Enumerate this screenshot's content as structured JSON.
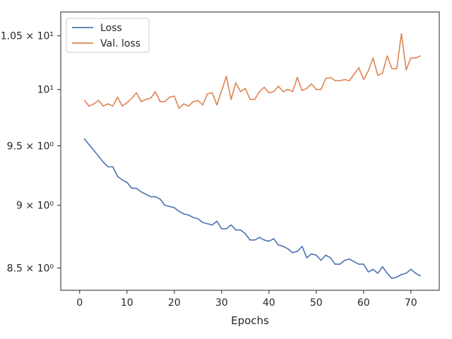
{
  "chart_data": {
    "type": "line",
    "title": "",
    "xlabel": "Epochs",
    "ylabel": "",
    "y_scale": "log",
    "xlim": [
      -4,
      76
    ],
    "ylim": [
      8.33,
      10.73
    ],
    "grid": false,
    "legend_position": "top-left",
    "x_ticks": [
      {
        "value": 0,
        "label": "0"
      },
      {
        "value": 10,
        "label": "10"
      },
      {
        "value": 20,
        "label": "20"
      },
      {
        "value": 30,
        "label": "30"
      },
      {
        "value": 40,
        "label": "40"
      },
      {
        "value": 50,
        "label": "50"
      },
      {
        "value": 60,
        "label": "60"
      },
      {
        "value": 70,
        "label": "70"
      }
    ],
    "y_ticks": [
      {
        "value": 8.5,
        "label": "8.5 × 10⁰"
      },
      {
        "value": 9.0,
        "label": "9 × 10⁰"
      },
      {
        "value": 9.5,
        "label": "9.5 × 10⁰"
      },
      {
        "value": 10.0,
        "label": "10¹"
      },
      {
        "value": 10.5,
        "label": "1.05 × 10¹"
      }
    ],
    "x": [
      1,
      2,
      3,
      4,
      5,
      6,
      7,
      8,
      9,
      10,
      11,
      12,
      13,
      14,
      15,
      16,
      17,
      18,
      19,
      20,
      21,
      22,
      23,
      24,
      25,
      26,
      27,
      28,
      29,
      30,
      31,
      32,
      33,
      34,
      35,
      36,
      37,
      38,
      39,
      40,
      41,
      42,
      43,
      44,
      45,
      46,
      47,
      48,
      49,
      50,
      51,
      52,
      53,
      54,
      55,
      56,
      57,
      58,
      59,
      60,
      61,
      62,
      63,
      64,
      65,
      66,
      67,
      68,
      69,
      70,
      71,
      72
    ],
    "series": [
      {
        "name": "Loss",
        "color": "#4c72b0",
        "values": [
          9.56,
          9.51,
          9.46,
          9.41,
          9.36,
          9.32,
          9.32,
          9.24,
          9.21,
          9.19,
          9.14,
          9.14,
          9.11,
          9.09,
          9.07,
          9.07,
          9.05,
          9.0,
          8.99,
          8.98,
          8.95,
          8.93,
          8.92,
          8.9,
          8.89,
          8.86,
          8.85,
          8.84,
          8.87,
          8.81,
          8.81,
          8.84,
          8.8,
          8.8,
          8.77,
          8.72,
          8.72,
          8.74,
          8.72,
          8.71,
          8.73,
          8.68,
          8.67,
          8.65,
          8.62,
          8.63,
          8.67,
          8.58,
          8.61,
          8.6,
          8.56,
          8.6,
          8.58,
          8.53,
          8.53,
          8.56,
          8.57,
          8.55,
          8.53,
          8.53,
          8.47,
          8.49,
          8.46,
          8.51,
          8.46,
          8.42,
          8.43,
          8.45,
          8.46,
          8.49,
          8.46,
          8.44
        ]
      },
      {
        "name": "Val. loss",
        "color": "#dd8452",
        "values": [
          9.9,
          9.85,
          9.87,
          9.9,
          9.85,
          9.87,
          9.85,
          9.93,
          9.85,
          9.88,
          9.92,
          9.97,
          9.89,
          9.91,
          9.92,
          9.98,
          9.89,
          9.89,
          9.93,
          9.94,
          9.83,
          9.87,
          9.85,
          9.89,
          9.9,
          9.86,
          9.96,
          9.97,
          9.86,
          9.99,
          10.12,
          9.91,
          10.06,
          9.98,
          10.01,
          9.91,
          9.91,
          9.98,
          10.02,
          9.97,
          9.98,
          10.03,
          9.98,
          10.0,
          9.98,
          10.11,
          9.99,
          10.01,
          10.05,
          10.0,
          10.0,
          10.1,
          10.11,
          10.08,
          10.08,
          10.09,
          10.08,
          10.14,
          10.2,
          10.09,
          10.17,
          10.29,
          10.13,
          10.15,
          10.31,
          10.19,
          10.19,
          10.52,
          10.18,
          10.29,
          10.29,
          10.31
        ]
      }
    ]
  }
}
